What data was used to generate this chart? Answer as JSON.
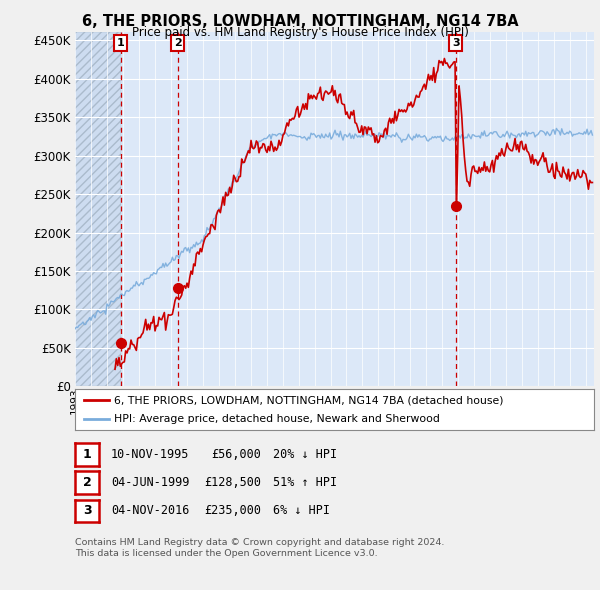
{
  "title": "6, THE PRIORS, LOWDHAM, NOTTINGHAM, NG14 7BA",
  "subtitle": "Price paid vs. HM Land Registry's House Price Index (HPI)",
  "legend_line1": "6, THE PRIORS, LOWDHAM, NOTTINGHAM, NG14 7BA (detached house)",
  "legend_line2": "HPI: Average price, detached house, Newark and Sherwood",
  "footnote1": "Contains HM Land Registry data © Crown copyright and database right 2024.",
  "footnote2": "This data is licensed under the Open Government Licence v3.0.",
  "table_rows": [
    {
      "label": "1",
      "date_str": "10-NOV-1995",
      "price_str": "£56,000",
      "hpi_str": "20% ↓ HPI",
      "date_num": 1995.86,
      "price": 56000
    },
    {
      "label": "2",
      "date_str": "04-JUN-1999",
      "price_str": "£128,500",
      "hpi_str": "51% ↑ HPI",
      "date_num": 1999.43,
      "price": 128500
    },
    {
      "label": "3",
      "date_str": "04-NOV-2016",
      "price_str": "£235,000",
      "hpi_str": "6% ↓ HPI",
      "date_num": 2016.84,
      "price": 235000
    }
  ],
  "price_color": "#cc0000",
  "hpi_color": "#7aacdc",
  "ylim": [
    0,
    460000
  ],
  "yticks": [
    0,
    50000,
    100000,
    150000,
    200000,
    250000,
    300000,
    350000,
    400000,
    450000
  ],
  "xlim_start": 1993.0,
  "xlim_end": 2025.5,
  "background_color": "#f0f0f0",
  "plot_bg": "#dce8f8",
  "hatch_bg": "#c8d8ee",
  "grid_color": "#ffffff"
}
